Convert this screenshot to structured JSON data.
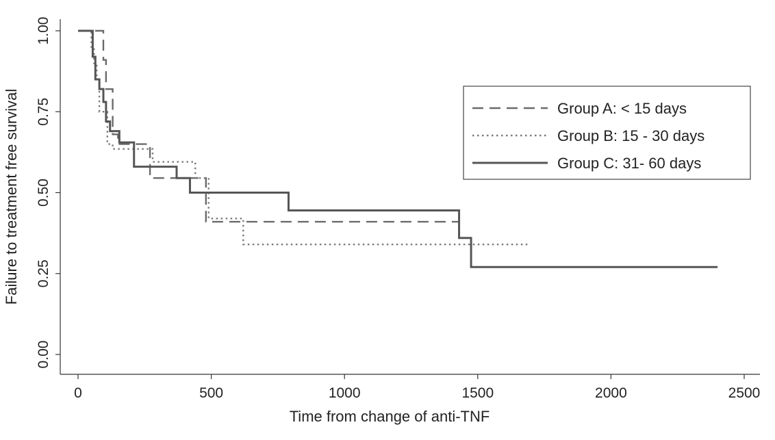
{
  "chart_data": {
    "type": "line",
    "step": true,
    "title": "",
    "xlabel": "Time from change of anti-TNF",
    "ylabel": "Failure to treatment free survival",
    "xlim": [
      0,
      2500
    ],
    "ylim": [
      0,
      1
    ],
    "xticks": [
      0,
      500,
      1000,
      1500,
      2000,
      2500
    ],
    "xtick_labels": [
      "0",
      "500",
      "1000",
      "1500",
      "2000",
      "2500"
    ],
    "yticks": [
      0,
      0.25,
      0.5,
      0.75,
      1.0
    ],
    "ytick_labels": [
      "0.00",
      "0.25",
      "0.50",
      "0.75",
      "1.00"
    ],
    "grid": false,
    "legend_position": "top-right",
    "series": [
      {
        "name": "Group A: < 15 days",
        "style": "dashed",
        "color": "#6a6a6a",
        "x": [
          0,
          95,
          105,
          130,
          150,
          270,
          470,
          480,
          1430
        ],
        "y": [
          1.0,
          0.91,
          0.82,
          0.68,
          0.65,
          0.545,
          0.545,
          0.41,
          0.41
        ]
      },
      {
        "name": "Group B: 15 - 30 days",
        "style": "dotted",
        "color": "#7a7a7a",
        "x": [
          0,
          50,
          60,
          70,
          80,
          110,
          130,
          280,
          440,
          490,
          620,
          1690
        ],
        "y": [
          1.0,
          0.95,
          0.9,
          0.85,
          0.75,
          0.65,
          0.635,
          0.595,
          0.545,
          0.42,
          0.34,
          0.34
        ]
      },
      {
        "name": "Group C: 31- 60 days",
        "style": "solid",
        "color": "#555555",
        "x": [
          0,
          55,
          65,
          80,
          95,
          105,
          120,
          155,
          210,
          370,
          420,
          790,
          1430,
          1475,
          2400
        ],
        "y": [
          1.0,
          0.92,
          0.85,
          0.82,
          0.78,
          0.72,
          0.69,
          0.655,
          0.58,
          0.545,
          0.5,
          0.445,
          0.36,
          0.27,
          0.27
        ]
      }
    ]
  }
}
